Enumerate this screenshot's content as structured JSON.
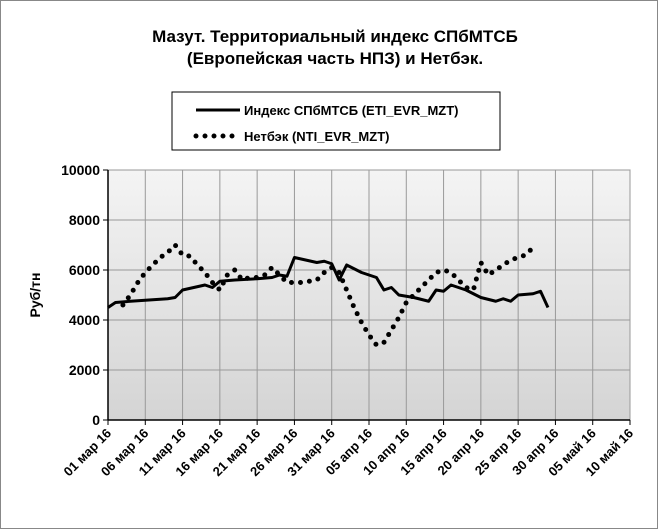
{
  "chart_data": {
    "type": "line",
    "title": [
      "Мазут. Территориальный индекс СПбМТСБ",
      "(Европейская часть НПЗ) и Нетбэк."
    ],
    "y_label": "Руб/тн",
    "ylim": [
      0,
      10000
    ],
    "yticks": [
      0,
      2000,
      4000,
      6000,
      8000,
      10000
    ],
    "xlim": [
      "2016-03-01",
      "2016-05-10"
    ],
    "xticks": [
      {
        "value": "2016-03-01",
        "label": "01 мар 16"
      },
      {
        "value": "2016-03-06",
        "label": "06 мар 16"
      },
      {
        "value": "2016-03-11",
        "label": "11 мар 16"
      },
      {
        "value": "2016-03-16",
        "label": "16 мар 16"
      },
      {
        "value": "2016-03-21",
        "label": "21 мар 16"
      },
      {
        "value": "2016-03-26",
        "label": "26 мар 16"
      },
      {
        "value": "2016-03-31",
        "label": "31 мар 16"
      },
      {
        "value": "2016-04-05",
        "label": "05 апр 16"
      },
      {
        "value": "2016-04-10",
        "label": "10 апр 16"
      },
      {
        "value": "2016-04-15",
        "label": "15 апр 16"
      },
      {
        "value": "2016-04-20",
        "label": "20 апр 16"
      },
      {
        "value": "2016-04-25",
        "label": "25 апр 16"
      },
      {
        "value": "2016-04-30",
        "label": "30 апр 16"
      },
      {
        "value": "2016-05-05",
        "label": "05 май 16"
      },
      {
        "value": "2016-05-10",
        "label": "10 май 16"
      }
    ],
    "grid": true,
    "series": [
      {
        "name": "Индекс СПбМТСБ  (ETI_EVR_MZT)",
        "color": "#000000",
        "style": "solid",
        "x": [
          "2016-03-01",
          "2016-03-02",
          "2016-03-04",
          "2016-03-09",
          "2016-03-10",
          "2016-03-11",
          "2016-03-14",
          "2016-03-15",
          "2016-03-16",
          "2016-03-18",
          "2016-03-21",
          "2016-03-23",
          "2016-03-24",
          "2016-03-25",
          "2016-03-26",
          "2016-03-29",
          "2016-03-30",
          "2016-03-31",
          "2016-04-01",
          "2016-04-02",
          "2016-04-04",
          "2016-04-06",
          "2016-04-07",
          "2016-04-08",
          "2016-04-09",
          "2016-04-11",
          "2016-04-13",
          "2016-04-14",
          "2016-04-15",
          "2016-04-16",
          "2016-04-18",
          "2016-04-20",
          "2016-04-22",
          "2016-04-23",
          "2016-04-24",
          "2016-04-25",
          "2016-04-27",
          "2016-04-28",
          "2016-04-29"
        ],
        "values": [
          4500,
          4700,
          4750,
          4850,
          4900,
          5200,
          5400,
          5300,
          5550,
          5600,
          5650,
          5700,
          5800,
          5750,
          6500,
          6300,
          6350,
          6250,
          5600,
          6200,
          5900,
          5700,
          5200,
          5300,
          5000,
          4900,
          4750,
          5200,
          5150,
          5400,
          5200,
          4900,
          4750,
          4850,
          4750,
          5000,
          5050,
          5150,
          4500
        ]
      },
      {
        "name": "Нетбэк (NTI_EVR_MZT)",
        "color": "#000000",
        "style": "dotted",
        "x": [
          "2016-03-03",
          "2016-03-04",
          "2016-03-05",
          "2016-03-06",
          "2016-03-07",
          "2016-03-08",
          "2016-03-09",
          "2016-03-10",
          "2016-03-11",
          "2016-03-12",
          "2016-03-13",
          "2016-03-14",
          "2016-03-15",
          "2016-03-16",
          "2016-03-17",
          "2016-03-18",
          "2016-03-19",
          "2016-03-20",
          "2016-03-21",
          "2016-03-22",
          "2016-03-23",
          "2016-03-24",
          "2016-03-25",
          "2016-03-27",
          "2016-03-29",
          "2016-03-30",
          "2016-03-31",
          "2016-04-01",
          "2016-04-02",
          "2016-04-03",
          "2016-04-04",
          "2016-04-05",
          "2016-04-06",
          "2016-04-07",
          "2016-04-08",
          "2016-04-09",
          "2016-04-10",
          "2016-04-11",
          "2016-04-12",
          "2016-04-13",
          "2016-04-14",
          "2016-04-15",
          "2016-04-16",
          "2016-04-17",
          "2016-04-18",
          "2016-04-19",
          "2016-04-20",
          "2016-04-21",
          "2016-04-22",
          "2016-04-23",
          "2016-04-24",
          "2016-04-25",
          "2016-04-26",
          "2016-04-27"
        ],
        "values": [
          4600,
          5000,
          5500,
          5900,
          6200,
          6500,
          6700,
          7000,
          6600,
          6550,
          6200,
          5900,
          5500,
          5200,
          5800,
          6000,
          5600,
          5700,
          5700,
          5800,
          6100,
          5800,
          5500,
          5500,
          5600,
          5900,
          6100,
          5900,
          5200,
          4500,
          3900,
          3400,
          3000,
          3100,
          3600,
          4100,
          4700,
          5000,
          5300,
          5600,
          5900,
          6000,
          5900,
          5600,
          5300,
          5200,
          6300,
          5800,
          6000,
          6200,
          6400,
          6500,
          6600,
          6900
        ]
      }
    ]
  }
}
